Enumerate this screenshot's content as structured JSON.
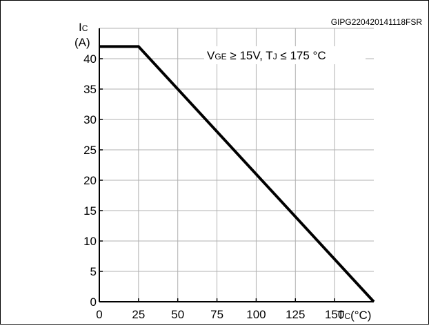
{
  "figure": {
    "code": "GIPG220420141118FSR",
    "colors": {
      "background": "#ffffff",
      "grid": "#b0b0b0",
      "line": "#000000",
      "border": "#000000"
    }
  },
  "chart_data": {
    "type": "line",
    "title": "",
    "annotation": {
      "v_main": "V",
      "v_sub": "GE",
      "v_rest": " ≥ 15V, T",
      "t_sub": "J",
      "t_rest": " ≤ 175 °C"
    },
    "ylabel": {
      "main": "I",
      "sub": "C",
      "unit": "(A)"
    },
    "xlabel": {
      "main": "T",
      "sub": "C",
      "unit": "(°C)"
    },
    "x_ticks": [
      "0",
      "25",
      "50",
      "75",
      "100",
      "125",
      "150"
    ],
    "y_ticks": [
      "0",
      "5",
      "10",
      "15",
      "20",
      "25",
      "30",
      "35",
      "40"
    ],
    "xlim": [
      0,
      175
    ],
    "ylim": [
      0,
      45
    ],
    "grid": true,
    "series": [
      {
        "x": [
          0,
          25,
          175
        ],
        "y": [
          42,
          42,
          0
        ]
      }
    ]
  }
}
